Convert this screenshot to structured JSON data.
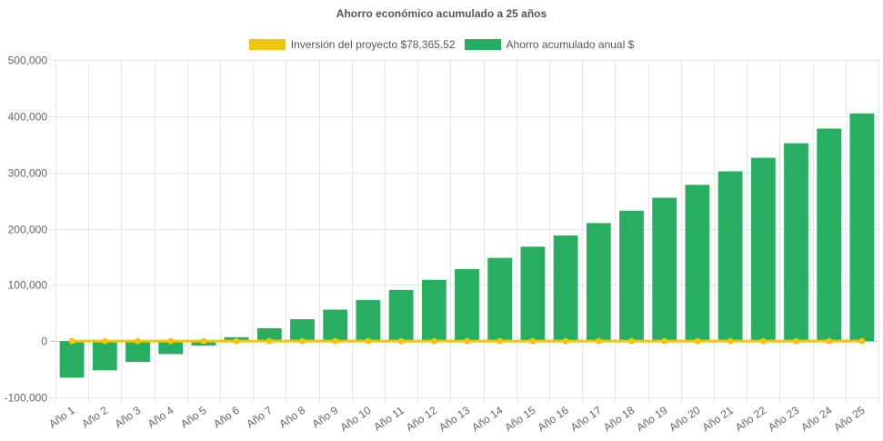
{
  "chart_data": {
    "type": "bar",
    "title": "Ahorro económico acumulado a 25 años",
    "categories": [
      "Año 1",
      "Año 2",
      "Año 3",
      "Año 4",
      "Año 5",
      "Año 6",
      "Año 7",
      "Año 8",
      "Año 9",
      "Año 10",
      "Año 11",
      "Año 12",
      "Año 13",
      "Año 14",
      "Año 15",
      "Año 16",
      "Año 17",
      "Año 18",
      "Año 19",
      "Año 20",
      "Año 21",
      "Año 22",
      "Año 23",
      "Año 24",
      "Año 25"
    ],
    "series": [
      {
        "name": "Inversión del proyecto $78,365.52",
        "type": "line",
        "color": "#f1c40f",
        "values": [
          0,
          0,
          0,
          0,
          0,
          0,
          0,
          0,
          0,
          0,
          0,
          0,
          0,
          0,
          0,
          0,
          0,
          0,
          0,
          0,
          0,
          0,
          0,
          0,
          0
        ]
      },
      {
        "name": "Ahorro acumulado anual $",
        "type": "bar",
        "color": "#27ae60",
        "values": [
          -65000,
          -52000,
          -37000,
          -23000,
          -8000,
          7000,
          23000,
          39000,
          56000,
          73000,
          91000,
          109000,
          128000,
          148000,
          168000,
          188000,
          210000,
          232000,
          255000,
          278000,
          302000,
          326000,
          352000,
          378000,
          405000
        ]
      }
    ],
    "ylim": [
      -100000,
      500000
    ],
    "yticks": [
      -100000,
      0,
      100000,
      200000,
      300000,
      400000,
      500000
    ],
    "ytick_labels": [
      "-100,000",
      "0",
      "100,000",
      "200,000",
      "300,000",
      "400,000",
      "500,000"
    ],
    "grid": true,
    "legend_position": "top"
  }
}
